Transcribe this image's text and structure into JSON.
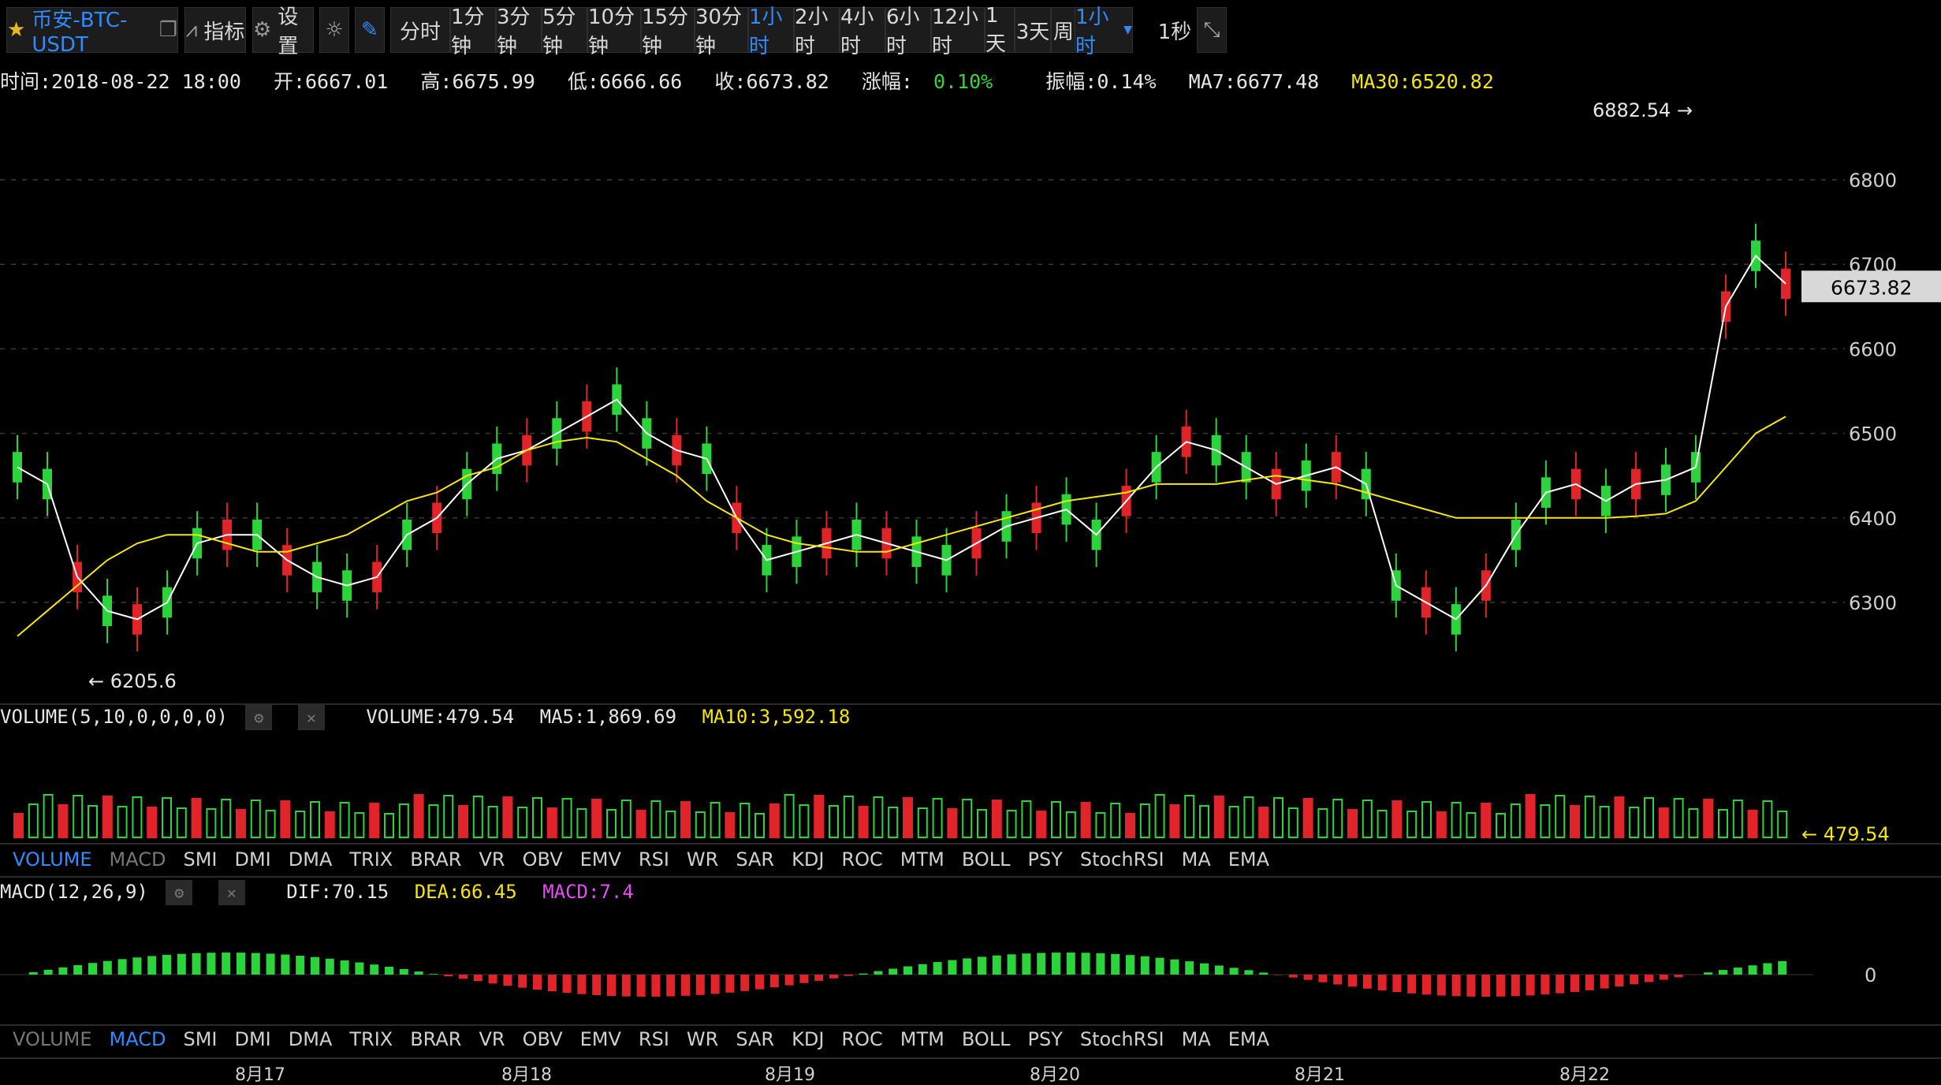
{
  "toolbar": {
    "symbol": "币安-BTC-USDT",
    "indicator_label": "指标",
    "settings_label": "设置",
    "intervals": [
      "分时",
      "1分钟",
      "3分钟",
      "5分钟",
      "10分钟",
      "15分钟",
      "30分钟",
      "1小时",
      "2小时",
      "4小时",
      "6小时",
      "12小时",
      "1天",
      "3天",
      "周线"
    ],
    "active_interval": "1小时",
    "interval_dropdown": "1小时",
    "refresh": "1秒"
  },
  "info": {
    "time": "时间:2018-08-22 18:00",
    "open": "开:6667.01",
    "high": "高:6675.99",
    "low": "低:6666.66",
    "close": "收:6673.82",
    "change_label": "涨幅:",
    "change_value": "0.10%",
    "amplitude": "振幅:0.14%",
    "ma7": "MA7:6677.48",
    "ma30": "MA30:6520.82"
  },
  "volume_legend": {
    "title": "VOLUME(5,10,0,0,0,0)",
    "volume": "VOLUME:479.54",
    "ma5": "MA5:1,869.69",
    "ma10": "MA10:3,592.18"
  },
  "macd_legend": {
    "title": "MACD(12,26,9)",
    "dif": "DIF:70.15",
    "dea": "DEA:66.45",
    "macd": "MACD:7.4"
  },
  "indicator_tabs": [
    "VOLUME",
    "MACD",
    "SMI",
    "DMI",
    "DMA",
    "TRIX",
    "BRAR",
    "VR",
    "OBV",
    "EMV",
    "RSI",
    "WR",
    "SAR",
    "KDJ",
    "ROC",
    "MTM",
    "BOLL",
    "PSY",
    "StochRSI",
    "MA",
    "EMA"
  ],
  "colors": {
    "up": "#2bd43a",
    "down": "#e0242a",
    "ma7": "#ffffff",
    "ma30": "#f5e60a",
    "grid": "#333333"
  },
  "chart_data": {
    "type": "candlestick",
    "price_ticks": [
      "6800",
      "6700",
      "6600",
      "6500",
      "6400",
      "6300"
    ],
    "ylim": [
      6200,
      6900
    ],
    "x_tick_labels": [
      "8月17",
      "8月18",
      "8月19",
      "8月20",
      "8月21",
      "8月22"
    ],
    "last_price": "6673.82",
    "max_marker": "6882.54",
    "min_marker": "6205.6",
    "volume_marker": "479.54",
    "macd_zero_label": "0",
    "series": [
      {
        "name": "MA7",
        "values": [
          6460,
          6440,
          6330,
          6290,
          6280,
          6300,
          6370,
          6380,
          6380,
          6350,
          6330,
          6320,
          6330,
          6380,
          6400,
          6440,
          6470,
          6480,
          6500,
          6520,
          6540,
          6500,
          6480,
          6470,
          6400,
          6350,
          6360,
          6370,
          6380,
          6370,
          6360,
          6350,
          6370,
          6390,
          6400,
          6410,
          6380,
          6420,
          6460,
          6490,
          6480,
          6460,
          6440,
          6450,
          6460,
          6440,
          6320,
          6300,
          6280,
          6320,
          6380,
          6430,
          6440,
          6420,
          6440,
          6445,
          6460,
          6650,
          6710,
          6677
        ]
      },
      {
        "name": "MA30",
        "values": [
          6260,
          6290,
          6320,
          6350,
          6370,
          6380,
          6380,
          6370,
          6360,
          6360,
          6370,
          6380,
          6400,
          6420,
          6430,
          6450,
          6460,
          6480,
          6490,
          6495,
          6490,
          6470,
          6450,
          6420,
          6400,
          6380,
          6370,
          6365,
          6360,
          6360,
          6370,
          6380,
          6390,
          6400,
          6410,
          6420,
          6425,
          6430,
          6440,
          6440,
          6440,
          6445,
          6450,
          6445,
          6440,
          6430,
          6420,
          6410,
          6400,
          6400,
          6400,
          6400,
          6400,
          6400,
          6402,
          6405,
          6420,
          6460,
          6500,
          6520
        ]
      }
    ]
  }
}
